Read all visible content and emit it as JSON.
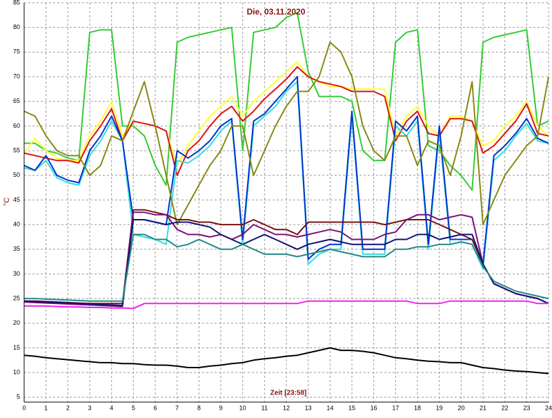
{
  "chart_data": {
    "type": "line",
    "title": "Die, 03.11.2020",
    "x_label": "Zeit [23:58]",
    "y_label": "°C",
    "xlim": [
      0,
      24
    ],
    "xticks": [
      0,
      1,
      2,
      3,
      4,
      5,
      6,
      7,
      8,
      9,
      10,
      11,
      12,
      13,
      14,
      15,
      16,
      17,
      18,
      19,
      20,
      21,
      22,
      23,
      24
    ],
    "ylim": [
      4,
      85
    ],
    "yticks": [
      5,
      10,
      15,
      20,
      25,
      30,
      35,
      40,
      45,
      50,
      55,
      60,
      65,
      70,
      75,
      80,
      85
    ],
    "grid": true,
    "x": [
      0,
      0.5,
      1,
      1.5,
      2,
      2.5,
      3,
      3.5,
      4,
      4.5,
      5,
      5.5,
      6,
      6.5,
      7,
      7.5,
      8,
      8.5,
      9,
      9.5,
      10,
      10.5,
      11,
      11.5,
      12,
      12.5,
      13,
      13.5,
      14,
      14.5,
      15,
      15.5,
      16,
      16.5,
      17,
      17.5,
      18,
      18.5,
      19,
      19.5,
      20,
      20.5,
      21,
      21.5,
      22,
      22.5,
      23,
      23.5,
      24
    ],
    "series": [
      {
        "color": "#33cc33",
        "values": [
          56.5,
          56.5,
          55,
          54.5,
          53.5,
          53,
          79,
          79.5,
          79.5,
          60,
          60,
          58,
          52,
          48,
          77,
          78,
          78.5,
          79,
          79.5,
          80,
          55,
          79,
          79.5,
          80,
          82,
          83,
          71,
          66,
          66,
          66,
          65,
          55,
          53,
          53,
          77,
          79,
          79.5,
          56,
          55,
          52,
          50,
          47,
          77,
          78,
          78.5,
          79,
          79.5,
          60,
          61
        ]
      },
      {
        "color": "#ffff33",
        "values": [
          54.5,
          57.5,
          55,
          53.5,
          53,
          53,
          58,
          61,
          65,
          58,
          61,
          60.5,
          60,
          59,
          52,
          56,
          59,
          62,
          64,
          66,
          62,
          65,
          67,
          69,
          71,
          73,
          70,
          69,
          68,
          68,
          67.5,
          67.5,
          67.5,
          67.5,
          58,
          62,
          64,
          60,
          58,
          62,
          62,
          61,
          56,
          57,
          60,
          62,
          65,
          60,
          58
        ]
      },
      {
        "color": "#dd1111",
        "values": [
          54.5,
          54,
          53.5,
          53,
          53,
          52.5,
          57,
          60,
          63.5,
          57,
          61,
          60.5,
          60,
          59,
          50,
          55,
          57,
          60,
          62.5,
          64,
          61,
          63,
          65.5,
          67.5,
          69.5,
          72,
          70,
          69,
          68.5,
          68,
          67,
          67,
          67,
          66,
          57,
          61,
          63,
          58.5,
          58,
          61.5,
          61.5,
          61,
          54.5,
          56,
          58.5,
          61,
          64.5,
          58.5,
          58
        ]
      },
      {
        "color": "#33dddd",
        "values": [
          51.5,
          51,
          53,
          49.5,
          48.5,
          48,
          54,
          57,
          61,
          57,
          38,
          37.5,
          37,
          36,
          53,
          52.5,
          54,
          56,
          59,
          61,
          36,
          60,
          62,
          64,
          67,
          69,
          32,
          34,
          35,
          35,
          62,
          34,
          34,
          34,
          60,
          58,
          61,
          35,
          59,
          36,
          36.5,
          36,
          31,
          53,
          55,
          58,
          60.5,
          57,
          56.5
        ]
      },
      {
        "color": "#0033cc",
        "values": [
          52,
          51,
          54,
          50,
          49,
          48.5,
          55,
          58,
          62,
          57,
          41,
          41,
          40.5,
          40,
          55,
          53.5,
          55,
          57,
          60,
          61.5,
          37,
          61,
          62.5,
          65,
          67.5,
          70,
          33,
          35,
          36,
          36,
          63,
          35,
          35,
          35,
          61,
          59,
          62,
          36,
          60,
          37,
          37,
          37,
          32,
          54,
          56,
          58.5,
          61.5,
          57.5,
          56.5
        ]
      },
      {
        "color": "#888811",
        "values": [
          63,
          62,
          58,
          55,
          54,
          54,
          50,
          52,
          58,
          57,
          63,
          69,
          60,
          50,
          40,
          44,
          48,
          52,
          55,
          60,
          60,
          50,
          55,
          60,
          64,
          67,
          67,
          70,
          77,
          75,
          70,
          60,
          55,
          53,
          58,
          58,
          52,
          57,
          56,
          50,
          58,
          69,
          40,
          45,
          50,
          53,
          56,
          58,
          70
        ]
      },
      {
        "color": "#771111",
        "values": [
          24.5,
          24.5,
          24.4,
          24.3,
          24.2,
          24.1,
          24,
          24,
          24,
          24,
          43,
          43,
          42.5,
          42,
          41,
          41,
          40.5,
          40.5,
          40,
          40,
          40,
          41,
          40,
          39,
          39,
          38,
          40.5,
          40.5,
          40.5,
          40.5,
          40.5,
          40.5,
          40.5,
          40,
          40.5,
          41,
          41,
          41,
          40,
          39,
          38,
          37,
          32,
          28,
          27,
          26,
          25.5,
          25,
          24
        ]
      },
      {
        "color": "#771177",
        "values": [
          24.3,
          24.2,
          24.1,
          24,
          23.9,
          23.8,
          23.7,
          23.6,
          23.5,
          23.4,
          42.5,
          42.5,
          42,
          42,
          39,
          38,
          38,
          37.5,
          38,
          37,
          38,
          40,
          39,
          38,
          38,
          37.5,
          38,
          38.5,
          39,
          38.5,
          37,
          37,
          37,
          38,
          38.5,
          41,
          42,
          42,
          41,
          41.5,
          42,
          41.5,
          32,
          28,
          27,
          26,
          25.5,
          25,
          24
        ]
      },
      {
        "color": "#111177",
        "values": [
          24.5,
          24.4,
          24.3,
          24.2,
          24.1,
          24,
          23.9,
          23.8,
          23.7,
          23.6,
          41,
          41,
          40.5,
          40,
          40.5,
          40.5,
          40,
          39.5,
          38,
          37,
          36,
          37,
          38,
          37,
          36,
          35,
          36,
          36.5,
          37,
          36.5,
          36,
          36,
          36,
          36,
          37,
          37,
          38,
          38,
          37,
          37.5,
          38,
          38,
          32,
          28,
          27,
          26,
          25.5,
          25,
          24
        ]
      },
      {
        "color": "#228888",
        "values": [
          25,
          25,
          24.9,
          24.8,
          24.7,
          24.6,
          24.5,
          24.5,
          24.5,
          24.5,
          38,
          38,
          37,
          37,
          35.5,
          36,
          37,
          36,
          35,
          35,
          36,
          35,
          34,
          34,
          34,
          33.5,
          34,
          34.5,
          35,
          34.5,
          34,
          33.5,
          33.5,
          33.5,
          35,
          35,
          35.5,
          35.5,
          36,
          36,
          36.5,
          36,
          31.5,
          28.5,
          27.5,
          26.5,
          26,
          25.5,
          25
        ]
      },
      {
        "color": "#ee22ee",
        "values": [
          23.5,
          23.5,
          23.5,
          23.4,
          23.3,
          23.3,
          23.2,
          23.2,
          23.1,
          23.1,
          23,
          24,
          24,
          24,
          24,
          24,
          24,
          24,
          24,
          24,
          24,
          24,
          24,
          24,
          24,
          24,
          24.5,
          24.5,
          24.5,
          24.5,
          24.5,
          24.5,
          24.5,
          24.5,
          24.5,
          24.5,
          24,
          24,
          24,
          24.5,
          24.5,
          24.5,
          24.5,
          24.5,
          24.5,
          24.5,
          24.5,
          24,
          24
        ]
      },
      {
        "color": "#000000",
        "values": [
          13.5,
          13.3,
          13,
          12.8,
          12.6,
          12.4,
          12.2,
          12,
          12,
          11.8,
          11.8,
          11.6,
          11.5,
          11.5,
          11.3,
          11,
          11,
          11.3,
          11.5,
          11.8,
          12,
          12.5,
          12.8,
          13,
          13.3,
          13.5,
          14,
          14.5,
          15,
          14.5,
          14.5,
          14.3,
          14,
          13.5,
          13,
          12.8,
          12.5,
          12.3,
          12.2,
          12,
          12,
          11.5,
          11,
          10.8,
          10.5,
          10.3,
          10.2,
          10,
          9.8
        ]
      }
    ]
  }
}
